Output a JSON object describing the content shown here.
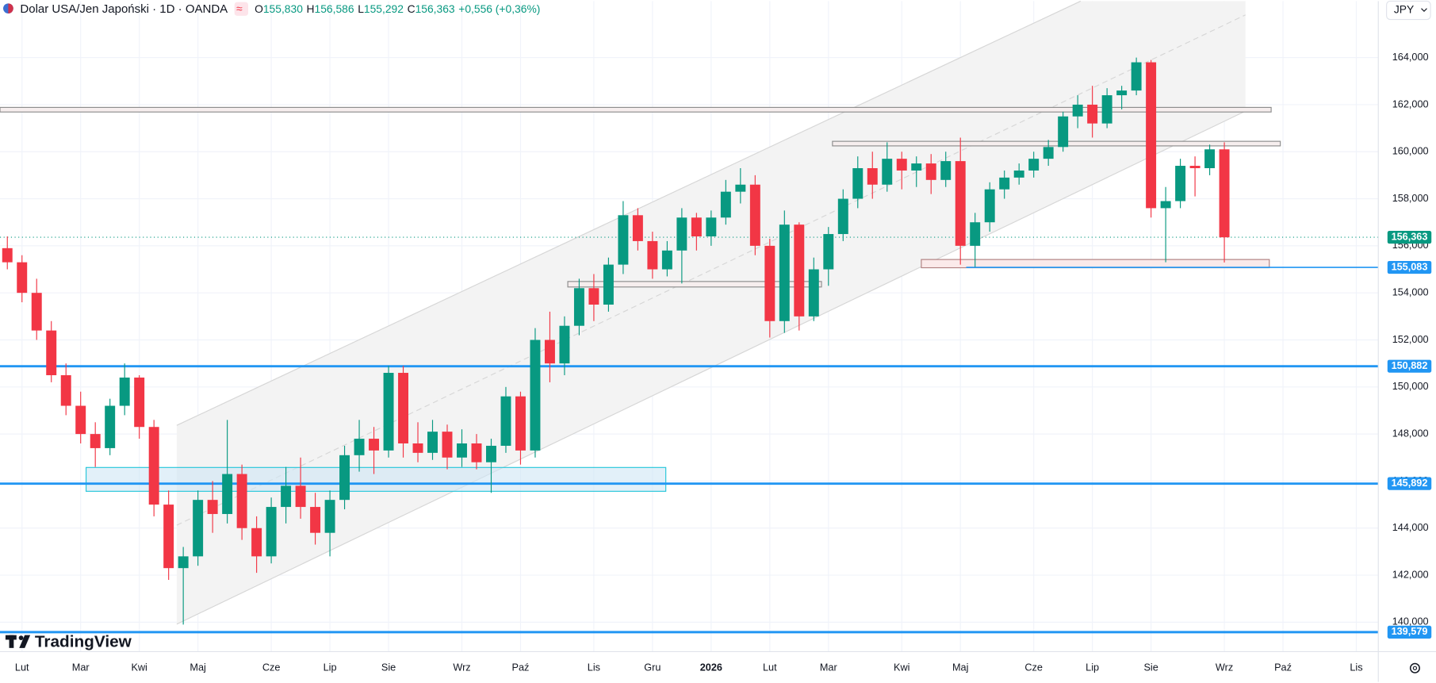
{
  "chart_data": {
    "type": "candlestick",
    "title": "Dolar USA/Jen Japoński · 1D · OANDA",
    "ohlc_header": [
      {
        "key": "O",
        "value": "155,830"
      },
      {
        "key": "H",
        "value": "156,586"
      },
      {
        "key": "L",
        "value": "155,292"
      },
      {
        "key": "C",
        "value": "156,363"
      }
    ],
    "change": "+0,556 (+0,36%)",
    "currency": "JPY",
    "watermark": "TradingView",
    "up_color": "#089981",
    "down_color": "#f23645",
    "ylim": [
      138.75,
      166.4
    ],
    "yticks": [
      {
        "value": 140,
        "label": "140,000"
      },
      {
        "value": 142,
        "label": "142,000"
      },
      {
        "value": 144,
        "label": "144,000"
      },
      {
        "value": 146,
        "label": "146,000"
      },
      {
        "value": 148,
        "label": "148,000"
      },
      {
        "value": 150,
        "label": "150,000"
      },
      {
        "value": 152,
        "label": "152,000"
      },
      {
        "value": 154,
        "label": "154,000"
      },
      {
        "value": 156,
        "label": "156,000"
      },
      {
        "value": 158,
        "label": "158,000"
      },
      {
        "value": 160,
        "label": "160,000"
      },
      {
        "value": 162,
        "label": "162,000"
      },
      {
        "value": 164,
        "label": "164,000"
      }
    ],
    "grid": true,
    "current_price": {
      "value": 156.363,
      "label": "156,363",
      "color": "#089981"
    },
    "price_lines": [
      {
        "value": 155.083,
        "label": "155,083",
        "color": "#2196f3"
      },
      {
        "value": 150.882,
        "label": "150,882",
        "color": "#2196f3"
      },
      {
        "value": 145.892,
        "label": "145,892",
        "color": "#2196f3"
      },
      {
        "value": 139.579,
        "label": "139,579",
        "color": "#2196f3"
      }
    ],
    "categories": [
      null,
      "Lut",
      null,
      null,
      null,
      "Mar",
      null,
      null,
      null,
      "Kwi",
      null,
      null,
      null,
      "Maj",
      null,
      null,
      null,
      null,
      "Cze",
      null,
      null,
      null,
      "Lip",
      null,
      null,
      null,
      "Sie",
      null,
      null,
      null,
      null,
      "Wrz",
      null,
      null,
      null,
      "Paź",
      null,
      null,
      null,
      null,
      "Lis",
      null,
      null,
      null,
      "Gru",
      null,
      null,
      null,
      "2026",
      null,
      null,
      null,
      "Lut",
      null,
      null,
      null,
      "Mar",
      null,
      null,
      null,
      null,
      "Kwi",
      null,
      null,
      null,
      "Maj",
      null,
      null,
      null,
      null,
      "Cze",
      null,
      null,
      null,
      "Lip",
      null,
      null,
      null,
      "Sie",
      null,
      null,
      null,
      null,
      "Wrz",
      null,
      null,
      null,
      "Paź",
      null,
      null,
      null,
      null,
      "Lis",
      null
    ],
    "ohlc": [
      [
        155.9,
        156.4,
        155.0,
        155.3
      ],
      [
        155.3,
        155.6,
        153.6,
        154.0
      ],
      [
        154.0,
        154.6,
        152.0,
        152.4
      ],
      [
        152.4,
        152.8,
        150.2,
        150.5
      ],
      [
        150.5,
        151.0,
        148.8,
        149.2
      ],
      [
        149.2,
        149.8,
        147.6,
        148.0
      ],
      [
        148.0,
        148.5,
        146.6,
        147.4
      ],
      [
        147.4,
        149.5,
        147.1,
        149.2
      ],
      [
        149.2,
        151.0,
        148.8,
        150.4
      ],
      [
        150.4,
        150.5,
        147.8,
        148.3
      ],
      [
        148.3,
        148.6,
        144.5,
        145.0
      ],
      [
        145.0,
        145.6,
        141.8,
        142.3
      ],
      [
        142.3,
        143.2,
        139.9,
        142.8
      ],
      [
        142.8,
        145.6,
        142.4,
        145.2
      ],
      [
        145.2,
        146.0,
        143.8,
        144.6
      ],
      [
        144.6,
        148.6,
        144.2,
        146.3
      ],
      [
        146.3,
        146.7,
        143.5,
        144.0
      ],
      [
        144.0,
        144.5,
        142.1,
        142.8
      ],
      [
        142.8,
        145.3,
        142.5,
        144.9
      ],
      [
        144.9,
        146.6,
        144.2,
        145.8
      ],
      [
        145.8,
        147.0,
        144.4,
        144.9
      ],
      [
        144.9,
        145.5,
        143.3,
        143.8
      ],
      [
        143.8,
        145.6,
        142.8,
        145.2
      ],
      [
        145.2,
        147.5,
        144.8,
        147.1
      ],
      [
        147.1,
        148.6,
        146.4,
        147.8
      ],
      [
        147.8,
        148.3,
        146.3,
        147.3
      ],
      [
        147.3,
        150.9,
        147.0,
        150.6
      ],
      [
        150.6,
        150.9,
        147.0,
        147.6
      ],
      [
        147.6,
        148.5,
        146.8,
        147.2
      ],
      [
        147.2,
        148.6,
        146.9,
        148.1
      ],
      [
        148.1,
        148.4,
        146.5,
        147.0
      ],
      [
        147.0,
        148.2,
        146.6,
        147.6
      ],
      [
        147.6,
        148.0,
        146.5,
        146.8
      ],
      [
        146.8,
        147.8,
        145.5,
        147.5
      ],
      [
        147.5,
        150.0,
        147.2,
        149.6
      ],
      [
        149.6,
        149.8,
        146.7,
        147.3
      ],
      [
        147.3,
        152.5,
        147.0,
        152.0
      ],
      [
        152.0,
        153.2,
        150.2,
        151.0
      ],
      [
        151.0,
        153.0,
        150.5,
        152.6
      ],
      [
        152.6,
        154.6,
        152.2,
        154.2
      ],
      [
        154.2,
        154.8,
        152.8,
        153.5
      ],
      [
        153.5,
        155.5,
        153.2,
        155.2
      ],
      [
        155.2,
        157.9,
        154.8,
        157.3
      ],
      [
        157.3,
        157.6,
        155.8,
        156.2
      ],
      [
        156.2,
        156.6,
        154.6,
        155.0
      ],
      [
        155.0,
        156.2,
        154.7,
        155.8
      ],
      [
        155.8,
        157.6,
        154.4,
        157.2
      ],
      [
        157.2,
        157.4,
        155.8,
        156.4
      ],
      [
        156.4,
        157.5,
        156.0,
        157.2
      ],
      [
        157.2,
        158.8,
        156.9,
        158.3
      ],
      [
        158.3,
        159.3,
        157.8,
        158.6
      ],
      [
        158.6,
        159.0,
        155.6,
        156.0
      ],
      [
        156.0,
        156.3,
        152.1,
        152.8
      ],
      [
        152.8,
        157.5,
        152.3,
        156.9
      ],
      [
        156.9,
        157.0,
        152.4,
        153.0
      ],
      [
        153.0,
        155.5,
        152.8,
        155.0
      ],
      [
        155.0,
        156.8,
        154.3,
        156.5
      ],
      [
        156.5,
        158.4,
        156.2,
        158.0
      ],
      [
        158.0,
        159.8,
        157.6,
        159.3
      ],
      [
        159.3,
        160.0,
        158.0,
        158.6
      ],
      [
        158.6,
        160.4,
        158.3,
        159.7
      ],
      [
        159.7,
        160.0,
        158.4,
        159.2
      ],
      [
        159.2,
        159.8,
        158.5,
        159.5
      ],
      [
        159.5,
        159.9,
        158.2,
        158.8
      ],
      [
        158.8,
        160.0,
        158.5,
        159.6
      ],
      [
        159.6,
        160.6,
        155.2,
        156.0
      ],
      [
        156.0,
        157.4,
        155.1,
        157.0
      ],
      [
        157.0,
        158.7,
        156.6,
        158.4
      ],
      [
        158.4,
        159.2,
        158.0,
        158.9
      ],
      [
        158.9,
        159.5,
        158.6,
        159.2
      ],
      [
        159.2,
        160.0,
        158.9,
        159.7
      ],
      [
        159.7,
        160.5,
        159.4,
        160.2
      ],
      [
        160.2,
        161.7,
        160.0,
        161.5
      ],
      [
        161.5,
        162.4,
        161.0,
        162.0
      ],
      [
        162.0,
        162.8,
        160.6,
        161.2
      ],
      [
        161.2,
        162.7,
        161.0,
        162.4
      ],
      [
        162.4,
        162.8,
        161.8,
        162.6
      ],
      [
        162.6,
        164.0,
        162.4,
        163.8
      ],
      [
        163.8,
        163.9,
        157.2,
        157.6
      ],
      [
        157.6,
        158.5,
        155.3,
        157.9
      ],
      [
        157.9,
        159.7,
        157.6,
        159.4
      ],
      [
        159.4,
        159.8,
        158.1,
        159.3
      ],
      [
        159.3,
        160.3,
        159.0,
        160.1
      ],
      [
        160.1,
        160.4,
        155.29,
        156.36
      ],
      null,
      null,
      null,
      null,
      null,
      null,
      null,
      null,
      null,
      null
    ]
  }
}
